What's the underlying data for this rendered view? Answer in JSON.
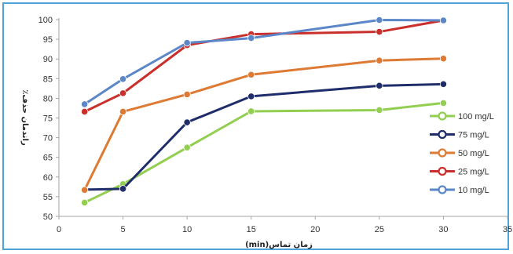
{
  "chart_data": {
    "type": "line",
    "xlabel": "زمان تماس(min)",
    "ylabel": "راندمان حذف٪",
    "xlim": [
      0,
      35
    ],
    "ylim": [
      50,
      100
    ],
    "xticks": [
      0,
      5,
      10,
      15,
      20,
      25,
      30,
      35
    ],
    "yticks": [
      50,
      55,
      60,
      65,
      70,
      75,
      80,
      85,
      90,
      95,
      100
    ],
    "grid": false,
    "legend_position": "right",
    "x": [
      2,
      5,
      10,
      15,
      25,
      30
    ],
    "series": [
      {
        "name": "100 mg/L",
        "color": "#92cf50",
        "values": [
          53.5,
          58.2,
          67.5,
          76.7,
          77.0,
          78.8
        ]
      },
      {
        "name": "75 mg/L",
        "color": "#1f2d6b",
        "values": [
          56.8,
          57.0,
          73.9,
          80.5,
          83.2,
          83.6
        ]
      },
      {
        "name": "50 mg/L",
        "color": "#dd7a33",
        "values": [
          56.7,
          76.6,
          81.0,
          86.0,
          89.6,
          90.1
        ]
      },
      {
        "name": "25 mg/L",
        "color": "#c9302c",
        "values": [
          76.6,
          81.3,
          93.5,
          96.3,
          96.9,
          99.8
        ]
      },
      {
        "name": "10 mg/L",
        "color": "#5b87c9",
        "values": [
          78.5,
          84.9,
          94.1,
          95.3,
          99.9,
          99.8
        ]
      }
    ]
  }
}
